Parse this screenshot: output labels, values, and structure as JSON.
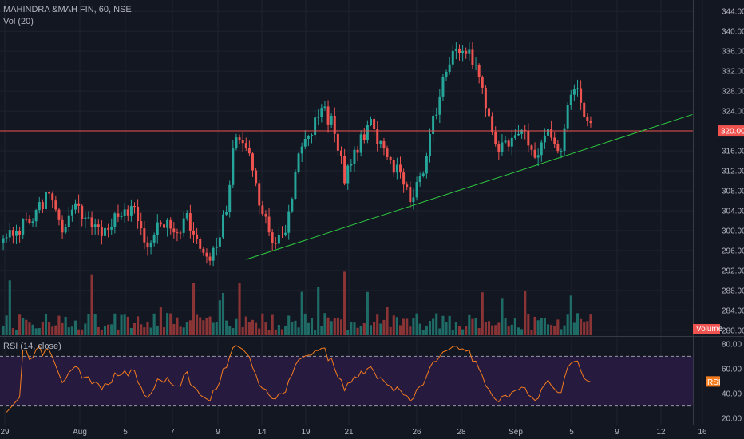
{
  "header": {
    "title": "MAHINDRA &MAH FIN, 60, NSE",
    "volume_indicator": "Vol (20)",
    "rsi_indicator": "RSI (14, close)"
  },
  "colors": {
    "background": "#131722",
    "grid": "#1f2330",
    "up": "#26a69a",
    "down": "#ef5350",
    "up_volume": "#1f6b66",
    "down_volume": "#8a3436",
    "trendline": "#2ecc40",
    "resistance": "#ef5350",
    "rsi_line": "#f57c1f",
    "rsi_band": "#261a3f",
    "axis_text": "#b2b5be"
  },
  "chart_data": [
    {
      "type": "candlestick",
      "name": "price",
      "ylim": [
        279,
        345
      ],
      "y_ticks": [
        280,
        284,
        288,
        292,
        296,
        300,
        304,
        308,
        312,
        316,
        320,
        324,
        328,
        332,
        336,
        340,
        344
      ],
      "x_ticks": [
        "29",
        "Aug",
        "5",
        "7",
        "9",
        "14",
        "19",
        "21",
        "26",
        "28",
        "Sep",
        "5",
        "9",
        "12",
        "16"
      ],
      "bar_count": 180,
      "price_anchors": [
        [
          0,
          298
        ],
        [
          5,
          300
        ],
        [
          10,
          304
        ],
        [
          14,
          307
        ],
        [
          18,
          301
        ],
        [
          22,
          305
        ],
        [
          27,
          301
        ],
        [
          31,
          299
        ],
        [
          35,
          303
        ],
        [
          40,
          305
        ],
        [
          44,
          297
        ],
        [
          48,
          302
        ],
        [
          52,
          299
        ],
        [
          56,
          303
        ],
        [
          60,
          296
        ],
        [
          64,
          295
        ],
        [
          68,
          305
        ],
        [
          71,
          320
        ],
        [
          74,
          318
        ],
        [
          78,
          305
        ],
        [
          82,
          298
        ],
        [
          86,
          300
        ],
        [
          90,
          314
        ],
        [
          94,
          320
        ],
        [
          97,
          324
        ],
        [
          100,
          322
        ],
        [
          104,
          311
        ],
        [
          108,
          317
        ],
        [
          112,
          321
        ],
        [
          116,
          316
        ],
        [
          120,
          312
        ],
        [
          124,
          306
        ],
        [
          128,
          313
        ],
        [
          131,
          322
        ],
        [
          134,
          330
        ],
        [
          138,
          337
        ],
        [
          142,
          336
        ],
        [
          146,
          328
        ],
        [
          150,
          316
        ],
        [
          154,
          318
        ],
        [
          158,
          320
        ],
        [
          162,
          316
        ],
        [
          166,
          319
        ],
        [
          170,
          317
        ],
        [
          172,
          326
        ],
        [
          175,
          329
        ],
        [
          177,
          323
        ],
        [
          180,
          320
        ]
      ],
      "resistance": {
        "value": 320.0,
        "label": "320.00"
      },
      "trendline": {
        "from": {
          "bar": 74,
          "price": 294.2
        },
        "to": {
          "bar": 210,
          "price": 323.3
        }
      }
    },
    {
      "type": "bar",
      "name": "volume",
      "label": "Volume"
    },
    {
      "type": "line",
      "name": "rsi",
      "ylim": [
        15,
        85
      ],
      "y_ticks": [
        20.0,
        40.0,
        60.0,
        80.0
      ],
      "bands": {
        "upper": 70,
        "lower": 30
      },
      "label": "RSI"
    }
  ]
}
